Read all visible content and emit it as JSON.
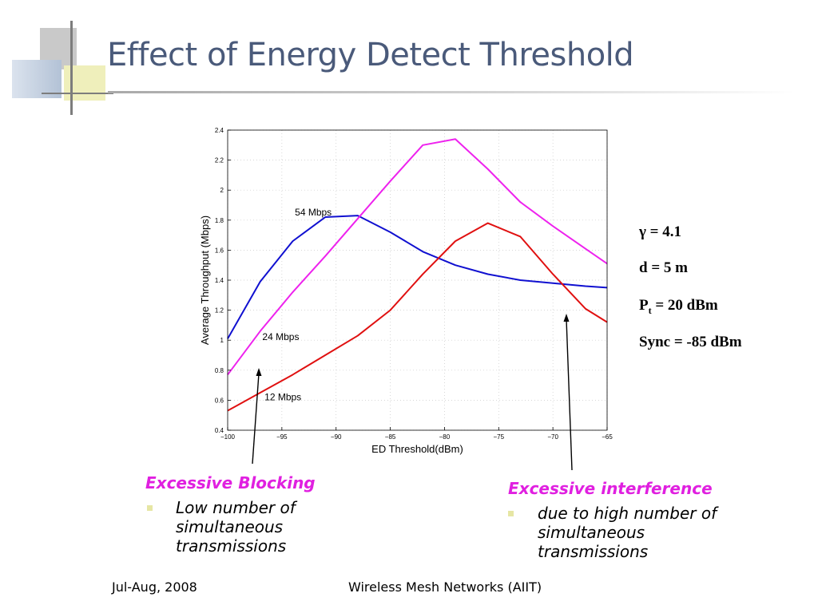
{
  "slide": {
    "title": "Effect of Energy Detect Threshold",
    "footer_left": "Jul-Aug, 2008",
    "footer_center": "Wireless Mesh Networks (AIIT)"
  },
  "parameters": {
    "gamma": "γ = 4.1",
    "distance": "d = 5 m",
    "pt_symbol": "P",
    "pt_sub": "t",
    "pt_rest": " = 20 dBm",
    "sync": "Sync = -85 dBm"
  },
  "annotations": {
    "blocking": {
      "heading": "Excessive Blocking",
      "lines": [
        "Low number of",
        "simultaneous",
        "transmissions"
      ]
    },
    "interference": {
      "heading": "Excessive interference",
      "lines": [
        "due to high number of",
        "simultaneous",
        "transmissions"
      ]
    }
  },
  "colors": {
    "title": "#4a5a7a",
    "highlight": "#e020e0",
    "series_54": "#1010d0",
    "series_24": "#ee22ee",
    "series_12": "#e01010"
  },
  "chart_data": {
    "type": "line",
    "xlabel": "ED Threshold(dBm)",
    "ylabel": "Average Throughput (Mbps)",
    "xlim": [
      -100,
      -65
    ],
    "ylim": [
      0.4,
      2.4
    ],
    "xticks": [
      -100,
      -95,
      -90,
      -85,
      -80,
      -75,
      -70,
      -65
    ],
    "xtick_labels": [
      "−100",
      "−95",
      "−90",
      "−85",
      "−80",
      "−75",
      "−70",
      "−65"
    ],
    "yticks": [
      0.4,
      0.6,
      0.8,
      1,
      1.2,
      1.4,
      1.6,
      1.8,
      2,
      2.2,
      2.4
    ],
    "ytick_labels": [
      "0.4",
      "0.6",
      "0.8",
      "1",
      "1.2",
      "1.4",
      "1.6",
      "1.8",
      "2",
      "2.2",
      "2.4"
    ],
    "grid": true,
    "series": [
      {
        "name": "54 Mbps",
        "color": "#1010d0",
        "x": [
          -100,
          -97,
          -94,
          -91,
          -88,
          -85,
          -82,
          -79,
          -76,
          -73,
          -70,
          -67,
          -65
        ],
        "y": [
          1.01,
          1.39,
          1.66,
          1.82,
          1.83,
          1.72,
          1.59,
          1.5,
          1.44,
          1.4,
          1.38,
          1.36,
          1.35
        ],
        "label_at": [
          -93.8,
          1.83
        ]
      },
      {
        "name": "24 Mbps",
        "color": "#ee22ee",
        "x": [
          -100,
          -97,
          -94,
          -91,
          -88,
          -85,
          -82,
          -79,
          -76,
          -73,
          -70,
          -67,
          -65
        ],
        "y": [
          0.77,
          1.06,
          1.32,
          1.56,
          1.81,
          2.06,
          2.3,
          2.34,
          2.14,
          1.92,
          1.76,
          1.61,
          1.51
        ],
        "label_at": [
          -96.8,
          1.0
        ]
      },
      {
        "name": "12 Mbps",
        "color": "#e01010",
        "x": [
          -100,
          -97,
          -94,
          -91,
          -88,
          -85,
          -82,
          -79,
          -76,
          -73,
          -70,
          -67,
          -65
        ],
        "y": [
          0.53,
          0.65,
          0.77,
          0.9,
          1.03,
          1.2,
          1.44,
          1.66,
          1.78,
          1.69,
          1.44,
          1.21,
          1.12
        ],
        "label_at": [
          -96.6,
          0.6
        ]
      }
    ]
  }
}
